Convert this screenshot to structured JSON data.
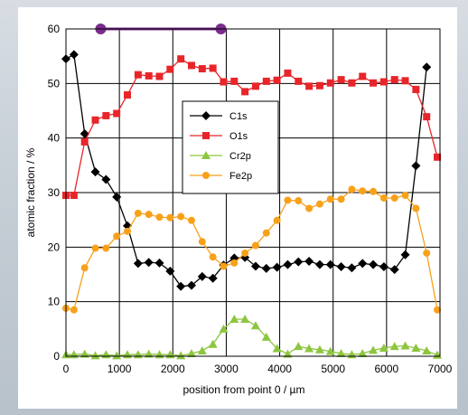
{
  "chart_data": {
    "type": "line",
    "xlabel": "position from point 0 / µm",
    "ylabel": "atomic fraction / %",
    "xlim": [
      0,
      7000
    ],
    "ylim": [
      0,
      60
    ],
    "xticks": [
      0,
      1000,
      2000,
      3000,
      4000,
      5000,
      6000,
      7000
    ],
    "yticks": [
      0,
      10,
      20,
      30,
      40,
      50,
      60
    ],
    "grid": true,
    "legend_position": "center",
    "range_marker": {
      "x": [
        650,
        2900
      ],
      "y": 60,
      "color": "#7b2c8e"
    },
    "series": [
      {
        "name": "C1s",
        "color": "#000000",
        "marker": "diamond",
        "x": [
          0,
          150,
          350,
          550,
          750,
          950,
          1150,
          1350,
          1550,
          1750,
          1950,
          2150,
          2350,
          2550,
          2750,
          2950,
          3150,
          3350,
          3550,
          3750,
          3950,
          4150,
          4350,
          4550,
          4750,
          4950,
          5150,
          5350,
          5550,
          5750,
          5950,
          6150,
          6350,
          6550,
          6750,
          6950
        ],
        "y": [
          54.5,
          55.3,
          40.8,
          33.8,
          32.4,
          29.2,
          23.9,
          17.0,
          17.2,
          17.1,
          15.6,
          12.8,
          13.0,
          14.6,
          14.3,
          16.7,
          18.0,
          18.1,
          16.5,
          16.1,
          16.3,
          16.8,
          17.3,
          17.4,
          16.8,
          16.8,
          16.4,
          16.2,
          17.0,
          16.8,
          16.4,
          15.9,
          18.6,
          34.9,
          53.0,
          null
        ]
      },
      {
        "name": "O1s",
        "color": "#e8252a",
        "marker": "square",
        "x": [
          0,
          150,
          350,
          550,
          750,
          950,
          1150,
          1350,
          1550,
          1750,
          1950,
          2150,
          2350,
          2550,
          2750,
          2950,
          3150,
          3350,
          3550,
          3750,
          3950,
          4150,
          4350,
          4550,
          4750,
          4950,
          5150,
          5350,
          5550,
          5750,
          5950,
          6150,
          6350,
          6550,
          6750,
          6950
        ],
        "y": [
          29.5,
          29.5,
          39.3,
          43.3,
          44.1,
          44.5,
          47.9,
          51.6,
          51.4,
          51.3,
          52.6,
          54.5,
          53.3,
          52.7,
          52.8,
          50.3,
          50.4,
          48.5,
          49.5,
          50.4,
          50.6,
          51.9,
          50.4,
          49.5,
          49.6,
          50.1,
          50.7,
          50.1,
          51.3,
          50.1,
          50.3,
          50.7,
          50.5,
          48.9,
          43.9,
          36.5
        ]
      },
      {
        "name": "Cr2p",
        "color": "#8dc63f",
        "marker": "triangle",
        "x": [
          0,
          150,
          350,
          550,
          750,
          950,
          1150,
          1350,
          1550,
          1750,
          1950,
          2150,
          2350,
          2550,
          2750,
          2950,
          3150,
          3350,
          3550,
          3750,
          3950,
          4150,
          4350,
          4550,
          4750,
          4950,
          5150,
          5350,
          5550,
          5750,
          5950,
          6150,
          6350,
          6550,
          6750,
          6950
        ],
        "y": [
          0.3,
          0.3,
          0.4,
          0.1,
          0.3,
          0.1,
          0.3,
          0.3,
          0.4,
          0.3,
          0.3,
          0.1,
          0.5,
          1.0,
          2.2,
          5.0,
          6.8,
          6.8,
          5.6,
          3.5,
          1.4,
          0.4,
          1.8,
          1.4,
          1.2,
          0.9,
          0.5,
          0.3,
          0.5,
          1.1,
          1.5,
          1.8,
          1.9,
          1.5,
          1.0,
          0.2
        ]
      },
      {
        "name": "Fe2p",
        "color": "#f7a11a",
        "marker": "circle",
        "x": [
          0,
          150,
          350,
          550,
          750,
          950,
          1150,
          1350,
          1550,
          1750,
          1950,
          2150,
          2350,
          2550,
          2750,
          2950,
          3150,
          3350,
          3550,
          3750,
          3950,
          4150,
          4350,
          4550,
          4750,
          4950,
          5150,
          5350,
          5550,
          5750,
          5950,
          6150,
          6350,
          6550,
          6750,
          6950
        ],
        "y": [
          8.8,
          8.5,
          16.2,
          19.8,
          19.8,
          22.0,
          22.9,
          26.2,
          26.0,
          25.5,
          25.4,
          25.6,
          24.9,
          21.0,
          18.2,
          16.5,
          17.1,
          18.9,
          20.3,
          22.6,
          24.9,
          28.6,
          28.5,
          27.1,
          27.9,
          28.8,
          28.8,
          30.6,
          30.3,
          30.2,
          29.0,
          29.0,
          29.5,
          27.1,
          18.9,
          8.5
        ]
      }
    ]
  }
}
